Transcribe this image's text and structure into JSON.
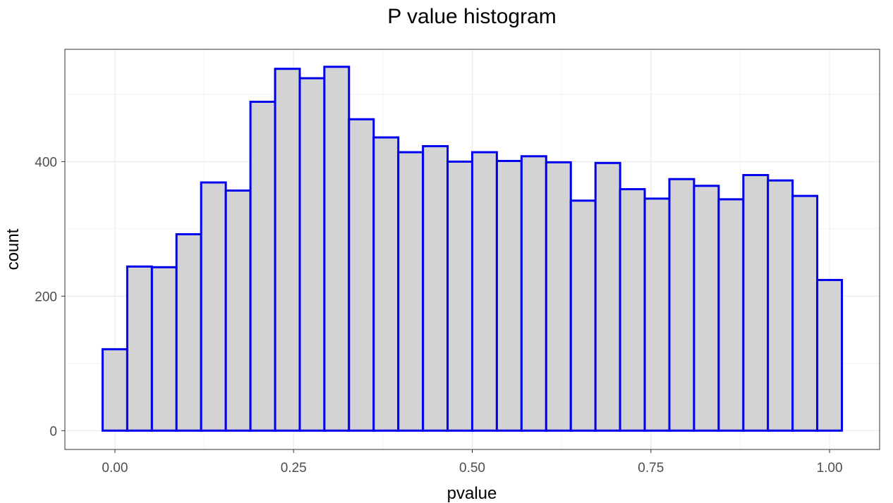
{
  "chart_data": {
    "type": "bar",
    "title": "P value histogram",
    "xlabel": "pvalue",
    "ylabel": "count",
    "xlim": [
      -0.07,
      1.07
    ],
    "ylim": [
      -28,
      567
    ],
    "x_ticks": [
      {
        "value": 0.0,
        "label": "0.00"
      },
      {
        "value": 0.25,
        "label": "0.25"
      },
      {
        "value": 0.5,
        "label": "0.50"
      },
      {
        "value": 0.75,
        "label": "0.75"
      },
      {
        "value": 1.0,
        "label": "1.00"
      }
    ],
    "y_ticks": [
      {
        "value": 0,
        "label": "0"
      },
      {
        "value": 200,
        "label": "200"
      },
      {
        "value": 400,
        "label": "400"
      }
    ],
    "bin_width": 0.0345,
    "bin_centers": [
      0.0,
      0.0345,
      0.069,
      0.1034,
      0.1379,
      0.1724,
      0.2069,
      0.2414,
      0.2759,
      0.3103,
      0.3448,
      0.3793,
      0.4138,
      0.4483,
      0.4828,
      0.5172,
      0.5517,
      0.5862,
      0.6207,
      0.6552,
      0.6897,
      0.7241,
      0.7586,
      0.7931,
      0.8276,
      0.8621,
      0.8966,
      0.931,
      0.9655,
      1.0
    ],
    "values": [
      121,
      244,
      243,
      292,
      369,
      357,
      489,
      538,
      524,
      541,
      463,
      436,
      414,
      423,
      400,
      414,
      401,
      408,
      399,
      342,
      398,
      359,
      345,
      374,
      364,
      344,
      380,
      372,
      349,
      224
    ],
    "grid": true,
    "bar_fill": "#d3d3d3",
    "bar_stroke": "#0000ee",
    "panel_border": "#333333",
    "grid_color": "#ebebeb"
  }
}
